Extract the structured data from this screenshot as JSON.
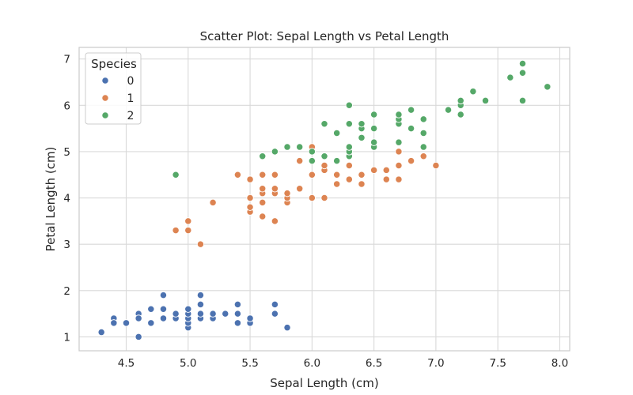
{
  "chart_data": {
    "type": "scatter",
    "title": "Scatter Plot: Sepal Length vs Petal Length",
    "xlabel": "Sepal Length (cm)",
    "ylabel": "Petal Length (cm)",
    "xlim": [
      4.12,
      8.08
    ],
    "ylim": [
      0.7,
      7.25
    ],
    "xticks": [
      4.5,
      5.0,
      5.5,
      6.0,
      6.5,
      7.0,
      7.5,
      8.0
    ],
    "xtick_labels": [
      "4.5",
      "5.0",
      "5.5",
      "6.0",
      "6.5",
      "7.0",
      "7.5",
      "8.0"
    ],
    "yticks": [
      1,
      2,
      3,
      4,
      5,
      6,
      7
    ],
    "ytick_labels": [
      "1",
      "2",
      "3",
      "4",
      "5",
      "6",
      "7"
    ],
    "grid": true,
    "legend": {
      "title": "Species",
      "placement": "top-left"
    },
    "series": [
      {
        "name": "0",
        "color": "#4c72b0",
        "points": [
          [
            4.3,
            1.1
          ],
          [
            4.4,
            1.4
          ],
          [
            4.4,
            1.3
          ],
          [
            4.5,
            1.3
          ],
          [
            4.6,
            1.5
          ],
          [
            4.6,
            1.4
          ],
          [
            4.6,
            1.0
          ],
          [
            4.7,
            1.3
          ],
          [
            4.7,
            1.6
          ],
          [
            4.8,
            1.4
          ],
          [
            4.8,
            1.6
          ],
          [
            4.8,
            1.9
          ],
          [
            4.9,
            1.4
          ],
          [
            4.9,
            1.5
          ],
          [
            5.0,
            1.2
          ],
          [
            5.0,
            1.3
          ],
          [
            5.0,
            1.4
          ],
          [
            5.0,
            1.5
          ],
          [
            5.0,
            1.6
          ],
          [
            5.1,
            1.4
          ],
          [
            5.1,
            1.5
          ],
          [
            5.1,
            1.7
          ],
          [
            5.1,
            1.9
          ],
          [
            5.2,
            1.4
          ],
          [
            5.2,
            1.5
          ],
          [
            5.3,
            1.5
          ],
          [
            5.4,
            1.3
          ],
          [
            5.4,
            1.5
          ],
          [
            5.4,
            1.7
          ],
          [
            5.5,
            1.3
          ],
          [
            5.5,
            1.4
          ],
          [
            5.7,
            1.5
          ],
          [
            5.7,
            1.7
          ],
          [
            5.8,
            1.2
          ]
        ]
      },
      {
        "name": "1",
        "color": "#dd8452",
        "points": [
          [
            4.9,
            3.3
          ],
          [
            5.0,
            3.3
          ],
          [
            5.0,
            3.5
          ],
          [
            5.1,
            3.0
          ],
          [
            5.2,
            3.9
          ],
          [
            5.4,
            4.5
          ],
          [
            5.5,
            3.7
          ],
          [
            5.5,
            3.8
          ],
          [
            5.5,
            4.0
          ],
          [
            5.5,
            4.4
          ],
          [
            5.6,
            3.6
          ],
          [
            5.6,
            3.9
          ],
          [
            5.6,
            4.1
          ],
          [
            5.6,
            4.2
          ],
          [
            5.6,
            4.5
          ],
          [
            5.7,
            3.5
          ],
          [
            5.7,
            4.1
          ],
          [
            5.7,
            4.2
          ],
          [
            5.7,
            4.5
          ],
          [
            5.8,
            3.9
          ],
          [
            5.8,
            4.0
          ],
          [
            5.8,
            4.1
          ],
          [
            5.9,
            4.2
          ],
          [
            5.9,
            4.8
          ],
          [
            6.0,
            4.0
          ],
          [
            6.0,
            4.5
          ],
          [
            6.0,
            5.1
          ],
          [
            6.1,
            4.0
          ],
          [
            6.1,
            4.6
          ],
          [
            6.1,
            4.7
          ],
          [
            6.2,
            4.3
          ],
          [
            6.2,
            4.5
          ],
          [
            6.3,
            4.4
          ],
          [
            6.3,
            4.7
          ],
          [
            6.3,
            4.9
          ],
          [
            6.4,
            4.3
          ],
          [
            6.4,
            4.5
          ],
          [
            6.5,
            4.6
          ],
          [
            6.6,
            4.4
          ],
          [
            6.6,
            4.6
          ],
          [
            6.7,
            4.4
          ],
          [
            6.7,
            4.7
          ],
          [
            6.7,
            5.0
          ],
          [
            6.8,
            4.8
          ],
          [
            6.9,
            4.9
          ],
          [
            7.0,
            4.7
          ]
        ]
      },
      {
        "name": "2",
        "color": "#55a868",
        "points": [
          [
            4.9,
            4.5
          ],
          [
            5.6,
            4.9
          ],
          [
            5.7,
            5.0
          ],
          [
            5.8,
            5.1
          ],
          [
            5.9,
            5.1
          ],
          [
            6.0,
            4.8
          ],
          [
            6.0,
            5.0
          ],
          [
            6.1,
            4.9
          ],
          [
            6.1,
            5.6
          ],
          [
            6.2,
            4.8
          ],
          [
            6.2,
            5.4
          ],
          [
            6.3,
            4.9
          ],
          [
            6.3,
            5.0
          ],
          [
            6.3,
            5.1
          ],
          [
            6.3,
            5.6
          ],
          [
            6.3,
            6.0
          ],
          [
            6.4,
            5.3
          ],
          [
            6.4,
            5.5
          ],
          [
            6.4,
            5.6
          ],
          [
            6.5,
            5.1
          ],
          [
            6.5,
            5.2
          ],
          [
            6.5,
            5.5
          ],
          [
            6.5,
            5.8
          ],
          [
            6.7,
            5.2
          ],
          [
            6.7,
            5.6
          ],
          [
            6.7,
            5.7
          ],
          [
            6.7,
            5.8
          ],
          [
            6.8,
            5.5
          ],
          [
            6.8,
            5.9
          ],
          [
            6.9,
            5.1
          ],
          [
            6.9,
            5.4
          ],
          [
            6.9,
            5.7
          ],
          [
            7.1,
            5.9
          ],
          [
            7.2,
            5.8
          ],
          [
            7.2,
            6.0
          ],
          [
            7.2,
            6.1
          ],
          [
            7.3,
            6.3
          ],
          [
            7.4,
            6.1
          ],
          [
            7.6,
            6.6
          ],
          [
            7.7,
            6.1
          ],
          [
            7.7,
            6.7
          ],
          [
            7.7,
            6.9
          ],
          [
            7.9,
            6.4
          ]
        ]
      }
    ]
  }
}
